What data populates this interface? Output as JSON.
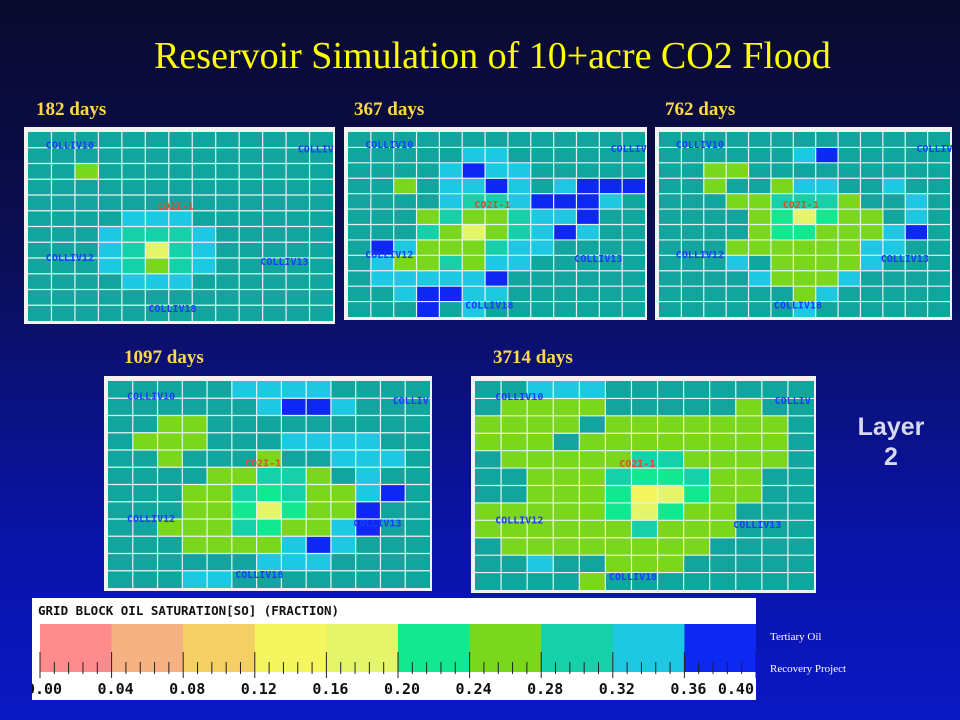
{
  "title": "Reservoir Simulation of 10+acre CO2 Flood",
  "layer": {
    "line1": "Layer",
    "line2": "2"
  },
  "panels": [
    {
      "label": "182 days",
      "wells": [
        "COLLIV10",
        "COLLIV",
        "CO2I-1",
        "COLLIV12",
        "COLLIV13",
        "COLLIV18"
      ],
      "cells": [
        [
          2,
          2,
          6
        ],
        [
          4,
          5,
          8
        ],
        [
          5,
          5,
          8
        ],
        [
          6,
          5,
          8
        ],
        [
          3,
          6,
          8
        ],
        [
          4,
          6,
          7
        ],
        [
          5,
          6,
          7
        ],
        [
          6,
          6,
          7
        ],
        [
          7,
          6,
          8
        ],
        [
          3,
          7,
          8
        ],
        [
          4,
          7,
          7
        ],
        [
          5,
          7,
          4
        ],
        [
          6,
          7,
          7
        ],
        [
          7,
          7,
          8
        ],
        [
          3,
          8,
          8
        ],
        [
          4,
          8,
          7
        ],
        [
          5,
          8,
          6
        ],
        [
          6,
          8,
          7
        ],
        [
          7,
          8,
          8
        ],
        [
          4,
          9,
          8
        ],
        [
          5,
          9,
          8
        ],
        [
          6,
          9,
          8
        ]
      ]
    },
    {
      "label": "367 days",
      "wells": [
        "COLLIV10",
        "COLLIV",
        "CO2I-1",
        "COLLIV12",
        "COLLIV13",
        "COLLIV18"
      ],
      "cells": [
        [
          5,
          1,
          8
        ],
        [
          6,
          1,
          8
        ],
        [
          4,
          2,
          8
        ],
        [
          5,
          2,
          9
        ],
        [
          6,
          2,
          8
        ],
        [
          7,
          2,
          8
        ],
        [
          2,
          3,
          6
        ],
        [
          4,
          3,
          8
        ],
        [
          5,
          3,
          8
        ],
        [
          6,
          3,
          9
        ],
        [
          7,
          3,
          8
        ],
        [
          9,
          3,
          8
        ],
        [
          10,
          3,
          9
        ],
        [
          11,
          3,
          9
        ],
        [
          12,
          3,
          9
        ],
        [
          4,
          4,
          8
        ],
        [
          5,
          4,
          7
        ],
        [
          6,
          4,
          7
        ],
        [
          7,
          4,
          8
        ],
        [
          8,
          4,
          9
        ],
        [
          9,
          4,
          9
        ],
        [
          10,
          4,
          9
        ],
        [
          11,
          4,
          8
        ],
        [
          3,
          5,
          6
        ],
        [
          4,
          5,
          7
        ],
        [
          5,
          5,
          6
        ],
        [
          6,
          5,
          6
        ],
        [
          7,
          5,
          7
        ],
        [
          8,
          5,
          8
        ],
        [
          9,
          5,
          8
        ],
        [
          10,
          5,
          9
        ],
        [
          3,
          6,
          7
        ],
        [
          4,
          6,
          6
        ],
        [
          5,
          6,
          4
        ],
        [
          6,
          6,
          6
        ],
        [
          7,
          6,
          7
        ],
        [
          8,
          6,
          8
        ],
        [
          9,
          6,
          9
        ],
        [
          10,
          6,
          8
        ],
        [
          1,
          7,
          9
        ],
        [
          2,
          7,
          8
        ],
        [
          3,
          7,
          6
        ],
        [
          4,
          7,
          6
        ],
        [
          5,
          7,
          6
        ],
        [
          6,
          7,
          7
        ],
        [
          7,
          7,
          8
        ],
        [
          8,
          7,
          8
        ],
        [
          1,
          8,
          8
        ],
        [
          2,
          8,
          6
        ],
        [
          3,
          8,
          6
        ],
        [
          4,
          8,
          7
        ],
        [
          5,
          8,
          6
        ],
        [
          6,
          8,
          8
        ],
        [
          7,
          8,
          8
        ],
        [
          1,
          9,
          8
        ],
        [
          2,
          9,
          8
        ],
        [
          3,
          9,
          8
        ],
        [
          4,
          9,
          8
        ],
        [
          5,
          9,
          8
        ],
        [
          6,
          9,
          9
        ],
        [
          2,
          10,
          8
        ],
        [
          3,
          10,
          9
        ],
        [
          4,
          10,
          9
        ],
        [
          5,
          10,
          8
        ],
        [
          6,
          10,
          8
        ],
        [
          3,
          11,
          9
        ],
        [
          5,
          11,
          8
        ]
      ]
    },
    {
      "label": "762 days",
      "wells": [
        "COLLIV10",
        "COLLIV",
        "CO2I-1",
        "COLLIV12",
        "COLLIV13",
        "COLLIV18"
      ],
      "cells": [
        [
          6,
          1,
          8
        ],
        [
          7,
          1,
          9
        ],
        [
          2,
          2,
          6
        ],
        [
          3,
          2,
          6
        ],
        [
          2,
          3,
          6
        ],
        [
          5,
          3,
          6
        ],
        [
          6,
          3,
          8
        ],
        [
          7,
          3,
          8
        ],
        [
          10,
          3,
          8
        ],
        [
          3,
          4,
          6
        ],
        [
          4,
          4,
          6
        ],
        [
          5,
          4,
          7
        ],
        [
          6,
          4,
          7
        ],
        [
          7,
          4,
          7
        ],
        [
          8,
          4,
          6
        ],
        [
          11,
          4,
          8
        ],
        [
          4,
          5,
          6
        ],
        [
          5,
          5,
          5
        ],
        [
          6,
          5,
          4
        ],
        [
          7,
          5,
          5
        ],
        [
          8,
          5,
          6
        ],
        [
          9,
          5,
          6
        ],
        [
          11,
          5,
          8
        ],
        [
          4,
          6,
          6
        ],
        [
          5,
          6,
          5
        ],
        [
          6,
          6,
          5
        ],
        [
          7,
          6,
          6
        ],
        [
          8,
          6,
          6
        ],
        [
          9,
          6,
          6
        ],
        [
          10,
          6,
          8
        ],
        [
          11,
          6,
          9
        ],
        [
          3,
          7,
          6
        ],
        [
          4,
          7,
          6
        ],
        [
          5,
          7,
          6
        ],
        [
          6,
          7,
          6
        ],
        [
          7,
          7,
          6
        ],
        [
          8,
          7,
          6
        ],
        [
          9,
          7,
          8
        ],
        [
          10,
          7,
          8
        ],
        [
          3,
          8,
          8
        ],
        [
          5,
          8,
          6
        ],
        [
          6,
          8,
          6
        ],
        [
          7,
          8,
          6
        ],
        [
          8,
          8,
          6
        ],
        [
          9,
          8,
          8
        ],
        [
          4,
          9,
          8
        ],
        [
          5,
          9,
          6
        ],
        [
          6,
          9,
          6
        ],
        [
          7,
          9,
          6
        ],
        [
          8,
          9,
          8
        ],
        [
          6,
          10,
          6
        ],
        [
          7,
          10,
          8
        ],
        [
          6,
          11,
          8
        ]
      ]
    },
    {
      "label": "1097 days",
      "wells": [
        "COLLIV10",
        "COLLIV",
        "CO2I-1",
        "COLLIV12",
        "COLLIV13",
        "COLLIV18"
      ],
      "cells": [
        [
          5,
          0,
          8
        ],
        [
          6,
          0,
          8
        ],
        [
          7,
          0,
          8
        ],
        [
          8,
          0,
          8
        ],
        [
          6,
          1,
          8
        ],
        [
          7,
          1,
          9
        ],
        [
          8,
          1,
          9
        ],
        [
          9,
          1,
          8
        ],
        [
          2,
          2,
          6
        ],
        [
          3,
          2,
          6
        ],
        [
          1,
          3,
          6
        ],
        [
          2,
          3,
          6
        ],
        [
          3,
          3,
          6
        ],
        [
          7,
          3,
          8
        ],
        [
          8,
          3,
          8
        ],
        [
          9,
          3,
          8
        ],
        [
          10,
          3,
          8
        ],
        [
          2,
          4,
          6
        ],
        [
          6,
          4,
          6
        ],
        [
          9,
          4,
          8
        ],
        [
          10,
          4,
          8
        ],
        [
          11,
          4,
          8
        ],
        [
          4,
          5,
          6
        ],
        [
          5,
          5,
          6
        ],
        [
          6,
          5,
          7
        ],
        [
          7,
          5,
          7
        ],
        [
          8,
          5,
          6
        ],
        [
          10,
          5,
          8
        ],
        [
          3,
          6,
          6
        ],
        [
          4,
          6,
          6
        ],
        [
          5,
          6,
          7
        ],
        [
          6,
          6,
          5
        ],
        [
          7,
          6,
          7
        ],
        [
          8,
          6,
          6
        ],
        [
          9,
          6,
          6
        ],
        [
          10,
          6,
          8
        ],
        [
          11,
          6,
          9
        ],
        [
          3,
          7,
          6
        ],
        [
          4,
          7,
          6
        ],
        [
          5,
          7,
          5
        ],
        [
          6,
          7,
          4
        ],
        [
          7,
          7,
          5
        ],
        [
          8,
          7,
          6
        ],
        [
          9,
          7,
          6
        ],
        [
          10,
          7,
          9
        ],
        [
          2,
          8,
          6
        ],
        [
          3,
          8,
          6
        ],
        [
          4,
          8,
          6
        ],
        [
          5,
          8,
          7
        ],
        [
          6,
          8,
          5
        ],
        [
          7,
          8,
          6
        ],
        [
          8,
          8,
          6
        ],
        [
          9,
          8,
          8
        ],
        [
          10,
          8,
          9
        ],
        [
          3,
          9,
          6
        ],
        [
          4,
          9,
          6
        ],
        [
          5,
          9,
          6
        ],
        [
          6,
          9,
          6
        ],
        [
          7,
          9,
          8
        ],
        [
          8,
          9,
          9
        ],
        [
          9,
          9,
          8
        ],
        [
          6,
          10,
          8
        ],
        [
          7,
          10,
          8
        ],
        [
          8,
          10,
          8
        ],
        [
          3,
          11,
          8
        ],
        [
          4,
          11,
          8
        ]
      ]
    },
    {
      "label": "3714 days",
      "wells": [
        "COLLIV10",
        "COLLIV",
        "CO2I-1",
        "COLLIV12",
        "COLLIV13",
        "COLLIV18"
      ],
      "cells": [
        [
          2,
          0,
          8
        ],
        [
          3,
          0,
          8
        ],
        [
          4,
          0,
          8
        ],
        [
          1,
          1,
          6
        ],
        [
          2,
          1,
          6
        ],
        [
          3,
          1,
          6
        ],
        [
          4,
          1,
          6
        ],
        [
          10,
          1,
          6
        ],
        [
          0,
          2,
          6
        ],
        [
          1,
          2,
          6
        ],
        [
          2,
          2,
          6
        ],
        [
          3,
          2,
          6
        ],
        [
          5,
          2,
          6
        ],
        [
          6,
          2,
          6
        ],
        [
          7,
          2,
          6
        ],
        [
          8,
          2,
          6
        ],
        [
          9,
          2,
          6
        ],
        [
          10,
          2,
          6
        ],
        [
          11,
          2,
          6
        ],
        [
          0,
          3,
          6
        ],
        [
          1,
          3,
          6
        ],
        [
          2,
          3,
          6
        ],
        [
          4,
          3,
          6
        ],
        [
          5,
          3,
          6
        ],
        [
          6,
          3,
          6
        ],
        [
          7,
          3,
          6
        ],
        [
          8,
          3,
          6
        ],
        [
          9,
          3,
          6
        ],
        [
          10,
          3,
          6
        ],
        [
          11,
          3,
          6
        ],
        [
          1,
          4,
          6
        ],
        [
          2,
          4,
          6
        ],
        [
          3,
          4,
          6
        ],
        [
          4,
          4,
          6
        ],
        [
          5,
          4,
          6
        ],
        [
          6,
          4,
          7
        ],
        [
          7,
          4,
          7
        ],
        [
          8,
          4,
          6
        ],
        [
          9,
          4,
          6
        ],
        [
          10,
          4,
          6
        ],
        [
          11,
          4,
          6
        ],
        [
          2,
          5,
          6
        ],
        [
          3,
          5,
          6
        ],
        [
          4,
          5,
          6
        ],
        [
          5,
          5,
          7
        ],
        [
          6,
          5,
          5
        ],
        [
          7,
          5,
          5
        ],
        [
          8,
          5,
          7
        ],
        [
          9,
          5,
          6
        ],
        [
          10,
          5,
          6
        ],
        [
          2,
          6,
          6
        ],
        [
          3,
          6,
          6
        ],
        [
          4,
          6,
          6
        ],
        [
          5,
          6,
          5
        ],
        [
          6,
          6,
          3
        ],
        [
          7,
          6,
          4
        ],
        [
          8,
          6,
          5
        ],
        [
          9,
          6,
          6
        ],
        [
          10,
          6,
          6
        ],
        [
          0,
          7,
          6
        ],
        [
          1,
          7,
          6
        ],
        [
          2,
          7,
          6
        ],
        [
          3,
          7,
          6
        ],
        [
          4,
          7,
          6
        ],
        [
          5,
          7,
          5
        ],
        [
          6,
          7,
          4
        ],
        [
          7,
          7,
          5
        ],
        [
          8,
          7,
          6
        ],
        [
          9,
          7,
          6
        ],
        [
          0,
          8,
          6
        ],
        [
          1,
          8,
          6
        ],
        [
          2,
          8,
          6
        ],
        [
          3,
          8,
          6
        ],
        [
          4,
          8,
          6
        ],
        [
          5,
          8,
          6
        ],
        [
          6,
          8,
          7
        ],
        [
          7,
          8,
          6
        ],
        [
          8,
          8,
          6
        ],
        [
          9,
          8,
          6
        ],
        [
          1,
          9,
          6
        ],
        [
          2,
          9,
          6
        ],
        [
          3,
          9,
          6
        ],
        [
          4,
          9,
          6
        ],
        [
          5,
          9,
          6
        ],
        [
          6,
          9,
          6
        ],
        [
          7,
          9,
          6
        ],
        [
          8,
          9,
          6
        ],
        [
          2,
          10,
          8
        ],
        [
          5,
          10,
          6
        ],
        [
          6,
          10,
          6
        ],
        [
          7,
          10,
          6
        ],
        [
          4,
          11,
          6
        ]
      ]
    }
  ],
  "legend": {
    "header": "GRID BLOCK OIL SATURATION[SO]  (FRACTION)",
    "ticks": [
      "0.00",
      "0.04",
      "0.08",
      "0.12",
      "0.16",
      "0.20",
      "0.24",
      "0.28",
      "0.32",
      "0.36",
      "0.40"
    ],
    "colors": [
      "#ff8c8c",
      "#f6b183",
      "#f4cf66",
      "#f5f560",
      "#e5f56a",
      "#12e890",
      "#7ad71c",
      "#15d0a8",
      "#1ec7e2",
      "#0c28f2"
    ]
  },
  "credit": {
    "line1": "Tertiary Oil",
    "line2": "Recovery Project"
  },
  "colors": {
    "background_base": "#11a59d",
    "grid": "#e8f2f0",
    "panel_frame": "#f2f2ef",
    "well_label": "#1a3aff",
    "injector_label": "#e24b2c",
    "title": "#ffff00",
    "captions": "#ffd84a"
  }
}
